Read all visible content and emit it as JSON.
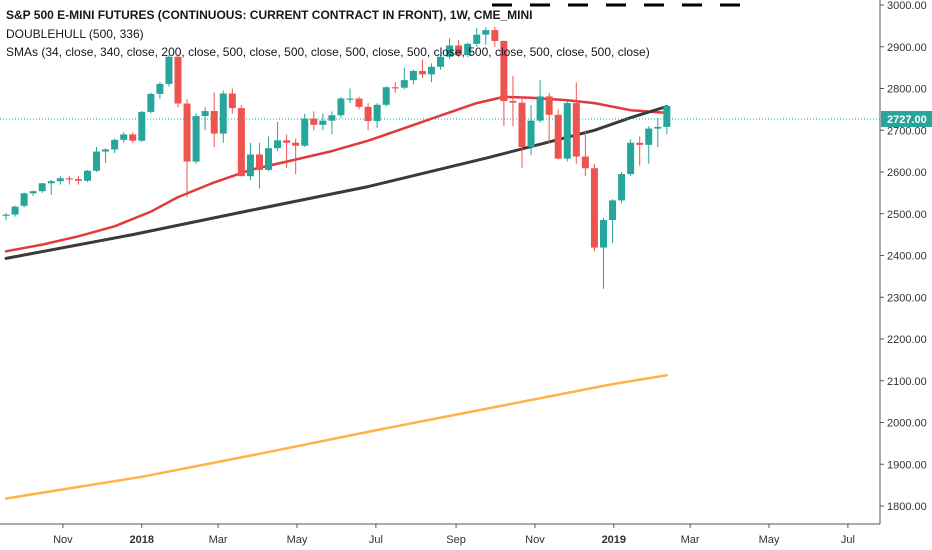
{
  "header": {
    "title": "S&P 500 E-MINI FUTURES (CONTINUOUS: CURRENT CONTRACT IN FRONT), 1W, CME_MINI",
    "indicator1": "DOUBLEHULL (500, 336)",
    "indicator2": "SMAs (34, close, 340, close, 200, close, 500, close, 500, close, 500, close, 500, close, 500, close, 500, close, 500, close)"
  },
  "colors": {
    "up": "#26a69a",
    "down": "#ef5350",
    "sma_red": "#e0393e",
    "sma_dark": "#3a3a3a",
    "sma_orange": "#ffb347",
    "last_price_label": "#26a69a",
    "last_price_line": "#26a69a"
  },
  "chart_data": {
    "type": "candlestick",
    "ylim": [
      1750,
      3020
    ],
    "y_ticks": [
      1800,
      1900,
      2000,
      2100,
      2200,
      2300,
      2400,
      2500,
      2600,
      2700,
      2800,
      2900,
      3000
    ],
    "y_tick_labels": [
      "1800.00",
      "1900.00",
      "2000.00",
      "2100.00",
      "2200.00",
      "2300.00",
      "2400.00",
      "2500.00",
      "2600.00",
      "2700.00",
      "2800.00",
      "2900.00",
      "3000.00"
    ],
    "x_start": "2017-09-18",
    "x_end": "2019-07-15",
    "x_ticks": [
      {
        "date": "2017-11-01",
        "label": "Nov",
        "bold": false
      },
      {
        "date": "2018-01-01",
        "label": "2018",
        "bold": true
      },
      {
        "date": "2018-03-01",
        "label": "Mar",
        "bold": false
      },
      {
        "date": "2018-05-01",
        "label": "May",
        "bold": false
      },
      {
        "date": "2018-07-01",
        "label": "Jul",
        "bold": false
      },
      {
        "date": "2018-09-01",
        "label": "Sep",
        "bold": false
      },
      {
        "date": "2018-11-01",
        "label": "Nov",
        "bold": false
      },
      {
        "date": "2019-01-01",
        "label": "2019",
        "bold": true
      },
      {
        "date": "2019-03-01",
        "label": "Mar",
        "bold": false
      },
      {
        "date": "2019-05-01",
        "label": "May",
        "bold": false
      },
      {
        "date": "2019-07-01",
        "label": "Jul",
        "bold": false
      }
    ],
    "last_price": 2727.0,
    "last_price_label": "2727.00",
    "candles": [
      {
        "date": "2017-09-18",
        "o": 2497,
        "h": 2502,
        "l": 2484,
        "c": 2498
      },
      {
        "date": "2017-09-25",
        "o": 2498,
        "h": 2519,
        "l": 2493,
        "c": 2517
      },
      {
        "date": "2017-10-02",
        "o": 2519,
        "h": 2551,
        "l": 2515,
        "c": 2549
      },
      {
        "date": "2017-10-09",
        "o": 2549,
        "h": 2556,
        "l": 2543,
        "c": 2554
      },
      {
        "date": "2017-10-16",
        "o": 2554,
        "h": 2574,
        "l": 2550,
        "c": 2573
      },
      {
        "date": "2017-10-23",
        "o": 2573,
        "h": 2581,
        "l": 2545,
        "c": 2578
      },
      {
        "date": "2017-10-30",
        "o": 2578,
        "h": 2590,
        "l": 2570,
        "c": 2585
      },
      {
        "date": "2017-11-06",
        "o": 2585,
        "h": 2591,
        "l": 2570,
        "c": 2583
      },
      {
        "date": "2017-11-13",
        "o": 2583,
        "h": 2590,
        "l": 2570,
        "c": 2579
      },
      {
        "date": "2017-11-20",
        "o": 2579,
        "h": 2605,
        "l": 2576,
        "c": 2603
      },
      {
        "date": "2017-11-27",
        "o": 2603,
        "h": 2660,
        "l": 2600,
        "c": 2649
      },
      {
        "date": "2017-12-04",
        "o": 2649,
        "h": 2657,
        "l": 2622,
        "c": 2654
      },
      {
        "date": "2017-12-11",
        "o": 2654,
        "h": 2680,
        "l": 2645,
        "c": 2677
      },
      {
        "date": "2017-12-18",
        "o": 2677,
        "h": 2695,
        "l": 2670,
        "c": 2690
      },
      {
        "date": "2017-12-25",
        "o": 2690,
        "h": 2695,
        "l": 2670,
        "c": 2675
      },
      {
        "date": "2018-01-01",
        "o": 2675,
        "h": 2746,
        "l": 2672,
        "c": 2744
      },
      {
        "date": "2018-01-08",
        "o": 2744,
        "h": 2790,
        "l": 2740,
        "c": 2787
      },
      {
        "date": "2018-01-15",
        "o": 2787,
        "h": 2815,
        "l": 2775,
        "c": 2811
      },
      {
        "date": "2018-01-22",
        "o": 2811,
        "h": 2880,
        "l": 2805,
        "c": 2876
      },
      {
        "date": "2018-01-29",
        "o": 2876,
        "h": 2880,
        "l": 2755,
        "c": 2764
      },
      {
        "date": "2018-02-05",
        "o": 2764,
        "h": 2775,
        "l": 2540,
        "c": 2625
      },
      {
        "date": "2018-02-12",
        "o": 2625,
        "h": 2740,
        "l": 2620,
        "c": 2734
      },
      {
        "date": "2018-02-19",
        "o": 2734,
        "h": 2755,
        "l": 2700,
        "c": 2746
      },
      {
        "date": "2018-02-26",
        "o": 2746,
        "h": 2790,
        "l": 2660,
        "c": 2692
      },
      {
        "date": "2018-03-05",
        "o": 2692,
        "h": 2795,
        "l": 2670,
        "c": 2788
      },
      {
        "date": "2018-03-12",
        "o": 2788,
        "h": 2800,
        "l": 2740,
        "c": 2753
      },
      {
        "date": "2018-03-19",
        "o": 2753,
        "h": 2760,
        "l": 2590,
        "c": 2590
      },
      {
        "date": "2018-03-26",
        "o": 2590,
        "h": 2670,
        "l": 2580,
        "c": 2642
      },
      {
        "date": "2018-04-02",
        "o": 2642,
        "h": 2670,
        "l": 2560,
        "c": 2605
      },
      {
        "date": "2018-04-09",
        "o": 2605,
        "h": 2685,
        "l": 2602,
        "c": 2657
      },
      {
        "date": "2018-04-16",
        "o": 2657,
        "h": 2720,
        "l": 2650,
        "c": 2676
      },
      {
        "date": "2018-04-23",
        "o": 2676,
        "h": 2690,
        "l": 2610,
        "c": 2670
      },
      {
        "date": "2018-04-30",
        "o": 2670,
        "h": 2680,
        "l": 2595,
        "c": 2663
      },
      {
        "date": "2018-05-07",
        "o": 2663,
        "h": 2740,
        "l": 2660,
        "c": 2728
      },
      {
        "date": "2018-05-14",
        "o": 2728,
        "h": 2745,
        "l": 2700,
        "c": 2713
      },
      {
        "date": "2018-05-21",
        "o": 2713,
        "h": 2740,
        "l": 2700,
        "c": 2723
      },
      {
        "date": "2018-05-28",
        "o": 2723,
        "h": 2745,
        "l": 2690,
        "c": 2736
      },
      {
        "date": "2018-06-04",
        "o": 2736,
        "h": 2780,
        "l": 2730,
        "c": 2776
      },
      {
        "date": "2018-06-11",
        "o": 2776,
        "h": 2800,
        "l": 2765,
        "c": 2776
      },
      {
        "date": "2018-06-18",
        "o": 2776,
        "h": 2780,
        "l": 2750,
        "c": 2756
      },
      {
        "date": "2018-06-25",
        "o": 2756,
        "h": 2765,
        "l": 2700,
        "c": 2722
      },
      {
        "date": "2018-07-02",
        "o": 2722,
        "h": 2765,
        "l": 2705,
        "c": 2761
      },
      {
        "date": "2018-07-09",
        "o": 2761,
        "h": 2805,
        "l": 2757,
        "c": 2803
      },
      {
        "date": "2018-07-16",
        "o": 2803,
        "h": 2815,
        "l": 2790,
        "c": 2802
      },
      {
        "date": "2018-07-23",
        "o": 2802,
        "h": 2850,
        "l": 2798,
        "c": 2820
      },
      {
        "date": "2018-07-30",
        "o": 2820,
        "h": 2845,
        "l": 2810,
        "c": 2842
      },
      {
        "date": "2018-08-06",
        "o": 2842,
        "h": 2870,
        "l": 2825,
        "c": 2834
      },
      {
        "date": "2018-08-13",
        "o": 2834,
        "h": 2860,
        "l": 2815,
        "c": 2852
      },
      {
        "date": "2018-08-20",
        "o": 2852,
        "h": 2880,
        "l": 2845,
        "c": 2876
      },
      {
        "date": "2018-08-27",
        "o": 2876,
        "h": 2920,
        "l": 2870,
        "c": 2903
      },
      {
        "date": "2018-09-03",
        "o": 2903,
        "h": 2916,
        "l": 2875,
        "c": 2880
      },
      {
        "date": "2018-09-10",
        "o": 2880,
        "h": 2910,
        "l": 2875,
        "c": 2907
      },
      {
        "date": "2018-09-17",
        "o": 2907,
        "h": 2945,
        "l": 2900,
        "c": 2929
      },
      {
        "date": "2018-09-24",
        "o": 2929,
        "h": 2947,
        "l": 2905,
        "c": 2940
      },
      {
        "date": "2018-10-01",
        "o": 2940,
        "h": 2948,
        "l": 2900,
        "c": 2914
      },
      {
        "date": "2018-10-08",
        "o": 2914,
        "h": 2915,
        "l": 2710,
        "c": 2770
      },
      {
        "date": "2018-10-15",
        "o": 2770,
        "h": 2830,
        "l": 2710,
        "c": 2766
      },
      {
        "date": "2018-10-22",
        "o": 2766,
        "h": 2780,
        "l": 2610,
        "c": 2660
      },
      {
        "date": "2018-10-29",
        "o": 2660,
        "h": 2760,
        "l": 2640,
        "c": 2723
      },
      {
        "date": "2018-11-05",
        "o": 2723,
        "h": 2820,
        "l": 2718,
        "c": 2781
      },
      {
        "date": "2018-11-12",
        "o": 2781,
        "h": 2790,
        "l": 2670,
        "c": 2737
      },
      {
        "date": "2018-11-19",
        "o": 2737,
        "h": 2750,
        "l": 2630,
        "c": 2632
      },
      {
        "date": "2018-11-26",
        "o": 2632,
        "h": 2770,
        "l": 2625,
        "c": 2765
      },
      {
        "date": "2018-12-03",
        "o": 2765,
        "h": 2815,
        "l": 2620,
        "c": 2637
      },
      {
        "date": "2018-12-10",
        "o": 2637,
        "h": 2700,
        "l": 2590,
        "c": 2609
      },
      {
        "date": "2018-12-17",
        "o": 2609,
        "h": 2620,
        "l": 2410,
        "c": 2419
      },
      {
        "date": "2018-12-24",
        "o": 2419,
        "h": 2490,
        "l": 2320,
        "c": 2485
      },
      {
        "date": "2018-12-31",
        "o": 2485,
        "h": 2535,
        "l": 2430,
        "c": 2532
      },
      {
        "date": "2019-01-07",
        "o": 2532,
        "h": 2600,
        "l": 2525,
        "c": 2595
      },
      {
        "date": "2019-01-14",
        "o": 2595,
        "h": 2678,
        "l": 2590,
        "c": 2670
      },
      {
        "date": "2019-01-21",
        "o": 2670,
        "h": 2685,
        "l": 2615,
        "c": 2665
      },
      {
        "date": "2019-01-28",
        "o": 2665,
        "h": 2710,
        "l": 2620,
        "c": 2704
      },
      {
        "date": "2019-02-04",
        "o": 2704,
        "h": 2730,
        "l": 2660,
        "c": 2708
      },
      {
        "date": "2019-02-11",
        "o": 2708,
        "h": 2760,
        "l": 2690,
        "c": 2758
      }
    ],
    "series": [
      {
        "color_key": "sma_red",
        "width": 2.5,
        "points": [
          [
            "2017-09-18",
            2410
          ],
          [
            "2017-10-16",
            2426
          ],
          [
            "2017-11-13",
            2446
          ],
          [
            "2017-12-11",
            2470
          ],
          [
            "2018-01-08",
            2505
          ],
          [
            "2018-01-29",
            2540
          ],
          [
            "2018-02-26",
            2575
          ],
          [
            "2018-03-26",
            2605
          ],
          [
            "2018-04-23",
            2625
          ],
          [
            "2018-05-28",
            2650
          ],
          [
            "2018-06-25",
            2675
          ],
          [
            "2018-07-23",
            2705
          ],
          [
            "2018-08-20",
            2735
          ],
          [
            "2018-09-17",
            2765
          ],
          [
            "2018-10-08",
            2780
          ],
          [
            "2018-10-29",
            2778
          ],
          [
            "2018-11-26",
            2772
          ],
          [
            "2018-12-17",
            2765
          ],
          [
            "2019-01-14",
            2748
          ],
          [
            "2019-02-04",
            2743
          ],
          [
            "2019-02-11",
            2742
          ]
        ]
      },
      {
        "color_key": "sma_dark",
        "width": 3,
        "points": [
          [
            "2017-09-18",
            2393
          ],
          [
            "2017-12-25",
            2450
          ],
          [
            "2018-03-26",
            2508
          ],
          [
            "2018-06-25",
            2565
          ],
          [
            "2018-09-24",
            2633
          ],
          [
            "2018-12-17",
            2700
          ],
          [
            "2019-01-14",
            2730
          ],
          [
            "2019-02-11",
            2757
          ]
        ]
      },
      {
        "color_key": "sma_orange",
        "width": 2.5,
        "points": [
          [
            "2017-09-18",
            1818
          ],
          [
            "2018-01-01",
            1870
          ],
          [
            "2018-04-02",
            1925
          ],
          [
            "2018-07-02",
            1982
          ],
          [
            "2018-10-01",
            2037
          ],
          [
            "2018-12-31",
            2092
          ],
          [
            "2019-02-11",
            2113
          ]
        ]
      }
    ]
  }
}
